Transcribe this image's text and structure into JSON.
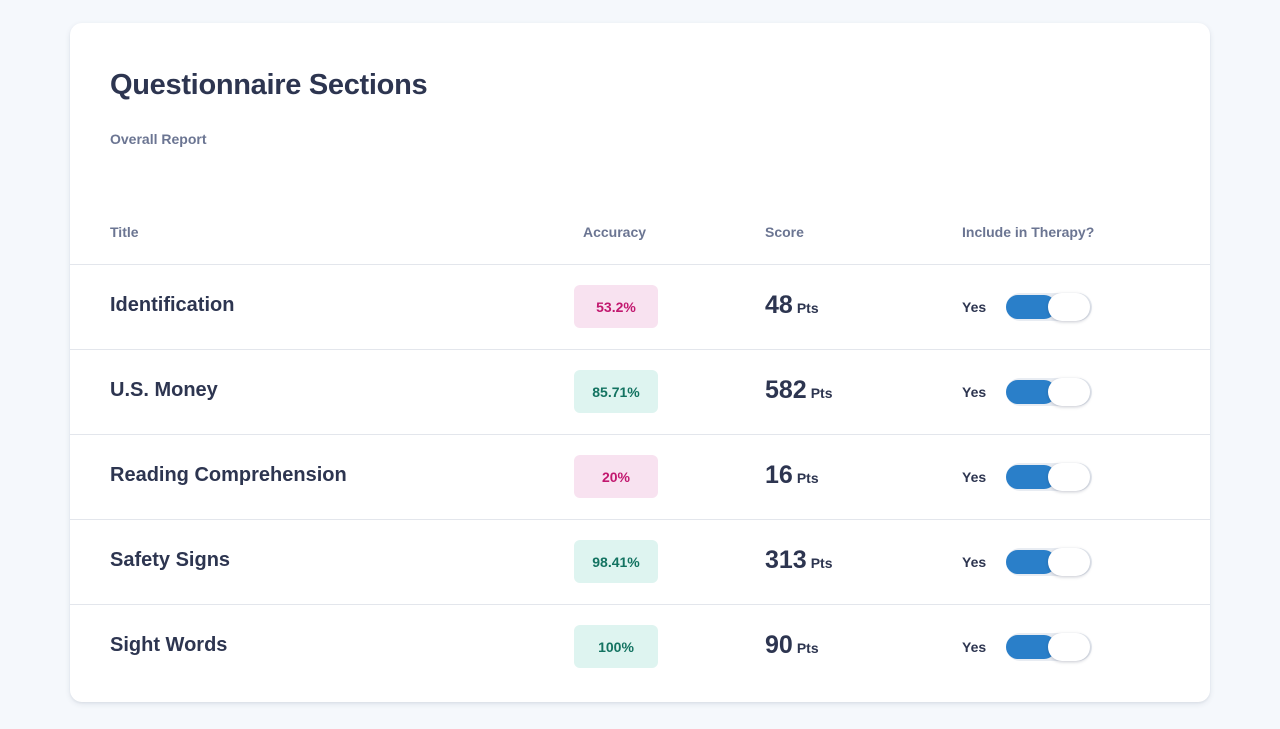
{
  "card": {
    "title": "Questionnaire Sections",
    "subtitle": "Overall Report"
  },
  "table": {
    "headers": {
      "title": "Title",
      "accuracy": "Accuracy",
      "score": "Score",
      "include": "Include in Therapy?"
    },
    "score_unit": "Pts",
    "rows": [
      {
        "title": "Identification",
        "accuracy": "53.2%",
        "accuracy_level": "low",
        "score": "48",
        "include": "Yes",
        "include_on": true
      },
      {
        "title": "U.S. Money",
        "accuracy": "85.71%",
        "accuracy_level": "high",
        "score": "582",
        "include": "Yes",
        "include_on": true
      },
      {
        "title": "Reading Comprehension",
        "accuracy": "20%",
        "accuracy_level": "low",
        "score": "16",
        "include": "Yes",
        "include_on": true
      },
      {
        "title": "Safety Signs",
        "accuracy": "98.41%",
        "accuracy_level": "high",
        "score": "313",
        "include": "Yes",
        "include_on": true
      },
      {
        "title": "Sight Words",
        "accuracy": "100%",
        "accuracy_level": "high",
        "score": "90",
        "include": "Yes",
        "include_on": true
      }
    ]
  },
  "colors": {
    "toggle_on": "#2a7fc9",
    "badge_low_bg": "#f8e2f0",
    "badge_low_text": "#c2186f",
    "badge_high_bg": "#def4f0",
    "badge_high_text": "#137361"
  }
}
